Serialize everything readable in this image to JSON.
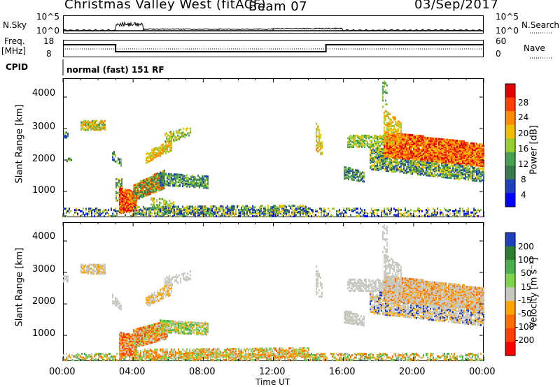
{
  "header": {
    "station": "Christmas Valley West (fitACF)",
    "beam": "Beam 07",
    "date": "03/Sep/2017"
  },
  "top_panels": {
    "nsky_label": "N.Sky",
    "nsky_ticks": [
      "10^5",
      "10^0"
    ],
    "nsearch_label": "N.Search",
    "nsearch_ticks": [
      "10^5",
      "10^0"
    ],
    "freq_label_1": "Freq.",
    "freq_label_2": "[MHz]",
    "freq_ticks": [
      "18",
      "8"
    ],
    "nave_label": "Nave",
    "nave_ticks": [
      "60",
      "0"
    ],
    "cpid_label": "CPID",
    "cpid_value": "normal (fast) 151 RF"
  },
  "chart_data": [
    {
      "type": "heatmap",
      "title": "",
      "ylabel": "Slant Range [km]",
      "yticks": [
        "4000",
        "3000",
        "2000",
        "1000"
      ],
      "ylim": [
        180,
        4600
      ],
      "xticks": [
        "00:00",
        "04:00",
        "08:00",
        "12:00",
        "16:00",
        "20:00",
        "00:00"
      ],
      "colorbar_label": "Power [dB]",
      "colorbar_ticks": [
        "28",
        "24",
        "20",
        "16",
        "12",
        "8",
        "4"
      ],
      "colorbar_range": [
        0,
        32
      ],
      "colors": [
        "#0000ff",
        "#2040c0",
        "#3a7a50",
        "#48a050",
        "#9acd32",
        "#f0c000",
        "#ff8c00",
        "#ff4000",
        "#e00000"
      ]
    },
    {
      "type": "heatmap",
      "title": "",
      "ylabel": "Slant Range [km]",
      "yticks": [
        "4000",
        "3000",
        "2000",
        "1000"
      ],
      "ylim": [
        180,
        4600
      ],
      "xticks": [
        "00:00",
        "04:00",
        "08:00",
        "12:00",
        "16:00",
        "20:00",
        "00:00"
      ],
      "xlabel": "Time UT",
      "colorbar_label": "Velocity [m s⁻¹]",
      "colorbar_ticks": [
        "200",
        "100",
        "50",
        "15",
        "-15",
        "-50",
        "-100",
        "-200"
      ],
      "colorbar_range": [
        -250,
        250
      ],
      "colors": [
        "#2040c0",
        "#2e7d32",
        "#4caf50",
        "#7fd34e",
        "#c8c8c0",
        "#ffa500",
        "#ff7000",
        "#ff4000",
        "#ff0000"
      ]
    }
  ]
}
